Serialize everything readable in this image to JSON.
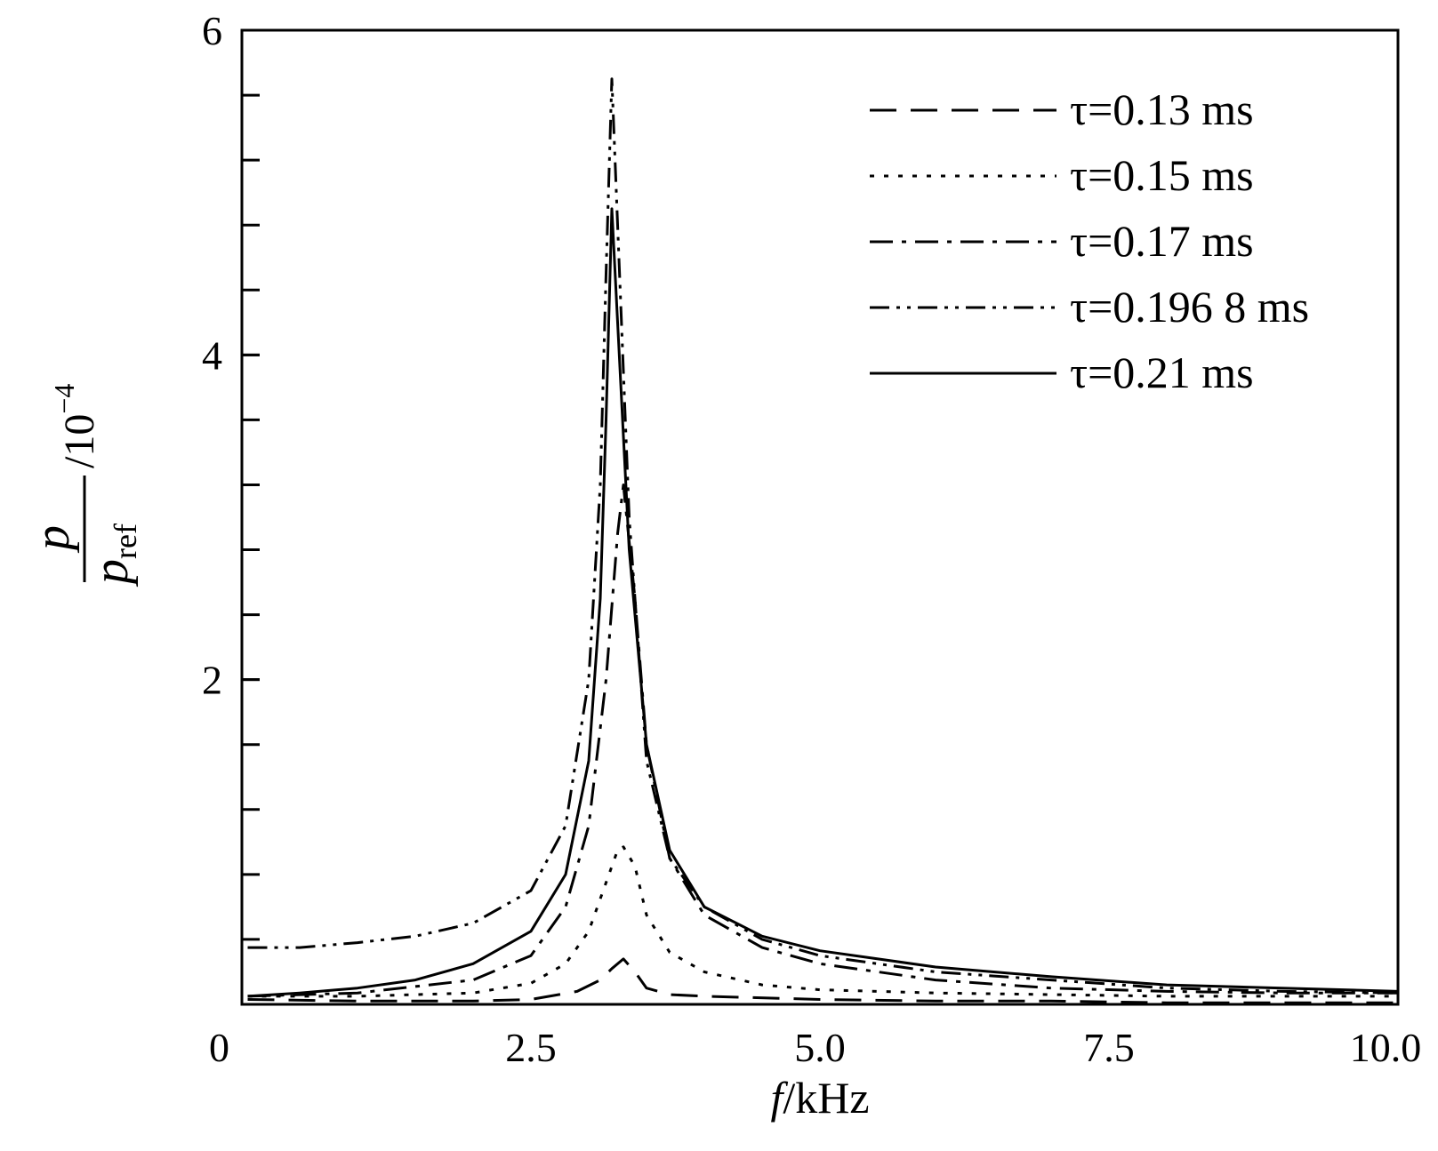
{
  "chart_data": {
    "type": "line",
    "xlabel": {
      "var": "f",
      "unit": "/kHz"
    },
    "ylabel": {
      "num": "p",
      "den": "p",
      "den_sub": "ref",
      "scale": "/10",
      "scale_exp": "−4"
    },
    "xlim": [
      0,
      10.0
    ],
    "ylim": [
      0,
      6
    ],
    "x_ticks": [
      {
        "value": 0,
        "label": "0"
      },
      {
        "value": 2.5,
        "label": "2.5"
      },
      {
        "value": 5.0,
        "label": "5.0"
      },
      {
        "value": 7.5,
        "label": "7.5"
      },
      {
        "value": 10.0,
        "label": "10.0"
      }
    ],
    "y_ticks": [
      {
        "value": 0,
        "label": ""
      },
      {
        "value": 2,
        "label": "2"
      },
      {
        "value": 4,
        "label": "4"
      },
      {
        "value": 6,
        "label": "6"
      }
    ],
    "y_minor_step": 0.4,
    "grid": false,
    "legend_position": "top-right",
    "series": [
      {
        "name": "τ=0.13 ms",
        "style": "dashed",
        "peak_f": 3.3,
        "peak_p": 0.28,
        "points": [
          [
            0.05,
            0.03
          ],
          [
            1.0,
            0.02
          ],
          [
            2.0,
            0.02
          ],
          [
            2.5,
            0.03
          ],
          [
            2.9,
            0.08
          ],
          [
            3.1,
            0.15
          ],
          [
            3.2,
            0.22
          ],
          [
            3.3,
            0.28
          ],
          [
            3.4,
            0.2
          ],
          [
            3.5,
            0.1
          ],
          [
            3.7,
            0.06
          ],
          [
            4.0,
            0.05
          ],
          [
            5.0,
            0.03
          ],
          [
            6.0,
            0.02
          ],
          [
            7.0,
            0.02
          ],
          [
            8.0,
            0.01
          ],
          [
            10.0,
            0.01
          ]
        ]
      },
      {
        "name": "τ=0.15 ms",
        "style": "dotted",
        "peak_f": 3.3,
        "peak_p": 0.97,
        "points": [
          [
            0.05,
            0.05
          ],
          [
            1.0,
            0.05
          ],
          [
            2.0,
            0.07
          ],
          [
            2.5,
            0.13
          ],
          [
            2.8,
            0.25
          ],
          [
            3.0,
            0.45
          ],
          [
            3.15,
            0.75
          ],
          [
            3.25,
            0.95
          ],
          [
            3.3,
            0.97
          ],
          [
            3.4,
            0.85
          ],
          [
            3.5,
            0.55
          ],
          [
            3.7,
            0.32
          ],
          [
            4.0,
            0.2
          ],
          [
            4.5,
            0.12
          ],
          [
            5.0,
            0.09
          ],
          [
            6.0,
            0.07
          ],
          [
            7.0,
            0.06
          ],
          [
            8.0,
            0.05
          ],
          [
            9.0,
            0.05
          ],
          [
            10.0,
            0.05
          ]
        ]
      },
      {
        "name": "τ=0.17 ms",
        "style": "dashdot",
        "peak_f": 3.3,
        "peak_p": 3.2,
        "points": [
          [
            0.05,
            0.05
          ],
          [
            1.0,
            0.07
          ],
          [
            2.0,
            0.15
          ],
          [
            2.5,
            0.3
          ],
          [
            2.8,
            0.6
          ],
          [
            3.0,
            1.1
          ],
          [
            3.15,
            2.0
          ],
          [
            3.25,
            2.9
          ],
          [
            3.3,
            3.2
          ],
          [
            3.4,
            2.5
          ],
          [
            3.5,
            1.6
          ],
          [
            3.7,
            0.9
          ],
          [
            4.0,
            0.55
          ],
          [
            4.5,
            0.35
          ],
          [
            5.0,
            0.25
          ],
          [
            6.0,
            0.15
          ],
          [
            7.0,
            0.1
          ],
          [
            8.0,
            0.08
          ],
          [
            9.0,
            0.07
          ],
          [
            10.0,
            0.07
          ]
        ]
      },
      {
        "name": "τ=0.196 8 ms",
        "style": "dashdotdot",
        "peak_f": 3.2,
        "peak_p": 5.7,
        "points": [
          [
            0.05,
            0.35
          ],
          [
            0.5,
            0.35
          ],
          [
            1.0,
            0.38
          ],
          [
            1.5,
            0.42
          ],
          [
            2.0,
            0.5
          ],
          [
            2.5,
            0.7
          ],
          [
            2.8,
            1.1
          ],
          [
            3.0,
            2.0
          ],
          [
            3.1,
            3.2
          ],
          [
            3.15,
            4.5
          ],
          [
            3.2,
            5.7
          ],
          [
            3.25,
            4.8
          ],
          [
            3.35,
            3.0
          ],
          [
            3.5,
            1.5
          ],
          [
            3.7,
            0.9
          ],
          [
            4.0,
            0.6
          ],
          [
            4.5,
            0.4
          ],
          [
            5.0,
            0.3
          ],
          [
            6.0,
            0.2
          ],
          [
            7.0,
            0.15
          ],
          [
            8.0,
            0.1
          ],
          [
            9.0,
            0.08
          ],
          [
            10.0,
            0.07
          ]
        ]
      },
      {
        "name": "τ=0.21 ms",
        "style": "solid",
        "peak_f": 3.2,
        "peak_p": 4.9,
        "points": [
          [
            0.05,
            0.05
          ],
          [
            0.5,
            0.07
          ],
          [
            1.0,
            0.1
          ],
          [
            1.5,
            0.15
          ],
          [
            2.0,
            0.25
          ],
          [
            2.5,
            0.45
          ],
          [
            2.8,
            0.8
          ],
          [
            3.0,
            1.5
          ],
          [
            3.1,
            2.5
          ],
          [
            3.15,
            3.6
          ],
          [
            3.2,
            4.9
          ],
          [
            3.25,
            4.2
          ],
          [
            3.35,
            2.8
          ],
          [
            3.5,
            1.6
          ],
          [
            3.7,
            0.95
          ],
          [
            4.0,
            0.6
          ],
          [
            4.5,
            0.42
          ],
          [
            5.0,
            0.33
          ],
          [
            6.0,
            0.23
          ],
          [
            7.0,
            0.17
          ],
          [
            8.0,
            0.12
          ],
          [
            9.0,
            0.1
          ],
          [
            10.0,
            0.08
          ]
        ]
      }
    ]
  }
}
